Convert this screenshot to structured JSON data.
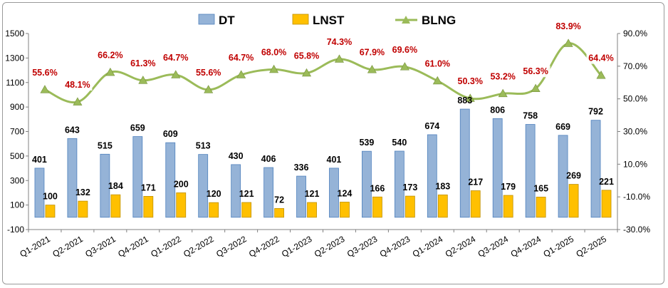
{
  "chart_data": {
    "type": "bar",
    "categories": [
      "Q1-2021",
      "Q2-2021",
      "Q3-2021",
      "Q4-2021",
      "Q1-2022",
      "Q2-2022",
      "Q3-2022",
      "Q4-2022",
      "Q1-2023",
      "Q2-2023",
      "Q3-2023",
      "Q4-2023",
      "Q1-2024",
      "Q2-2024",
      "Q3-2024",
      "Q4-2024",
      "Q1-2025",
      "Q2-2025"
    ],
    "series": [
      {
        "name": "DT",
        "type": "bar",
        "axis": "left",
        "color": "#95b3d7",
        "values": [
          401,
          643,
          515,
          659,
          609,
          513,
          430,
          406,
          336,
          401,
          539,
          540,
          674,
          883,
          806,
          758,
          669,
          792
        ]
      },
      {
        "name": "LNST",
        "type": "bar",
        "axis": "left",
        "color": "#ffc000",
        "values": [
          100,
          132,
          184,
          171,
          200,
          120,
          121,
          72,
          121,
          124,
          166,
          173,
          183,
          217,
          179,
          165,
          269,
          221
        ]
      },
      {
        "name": "BLNG",
        "type": "line",
        "axis": "right",
        "color": "#9bbb59",
        "marker": "triangle",
        "values": [
          55.6,
          48.1,
          66.2,
          61.3,
          64.7,
          55.6,
          64.7,
          68.0,
          65.8,
          74.3,
          67.9,
          69.6,
          61.0,
          50.3,
          53.2,
          56.3,
          83.9,
          64.4
        ],
        "labels": [
          "55.6%",
          "48.1%",
          "66.2%",
          "61.3%",
          "64.7%",
          "55.6%",
          "64.7%",
          "68.0%",
          "65.8%",
          "74.3%",
          "67.9%",
          "69.6%",
          "61.0%",
          "50.3%",
          "53.2%",
          "56.3%",
          "83.9%",
          "64.4%"
        ]
      }
    ],
    "y_left": {
      "min": -100,
      "max": 1500,
      "ticks": [
        "-100",
        "100",
        "300",
        "500",
        "700",
        "900",
        "1100",
        "1300",
        "1500"
      ]
    },
    "y_right": {
      "min": -30,
      "max": 90,
      "ticks": [
        "-30.0%",
        "-10.0%",
        "10.0%",
        "30.0%",
        "50.0%",
        "70.0%",
        "90.0%"
      ]
    },
    "legend_position": "top-center",
    "grid": false,
    "label_color": "#c00000"
  }
}
